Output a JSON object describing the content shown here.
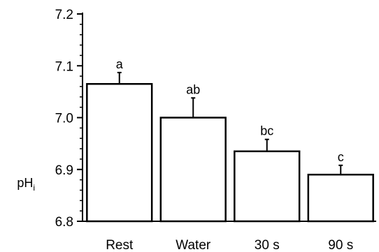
{
  "chart_data": {
    "type": "bar",
    "categories": [
      "Rest",
      "Water",
      "30 s",
      "90 s"
    ],
    "values": [
      7.065,
      7.0,
      6.935,
      6.89
    ],
    "errors": [
      0.022,
      0.038,
      0.023,
      0.018
    ],
    "significance_labels": [
      "a",
      "ab",
      "bc",
      "c"
    ],
    "ylabel": "pH",
    "ylabel_subscript": "i",
    "xlabel": "",
    "ylim": [
      6.8,
      7.2
    ],
    "yticks": [
      "6.8",
      "6.9",
      "7.0",
      "7.1",
      "7.2"
    ],
    "minor_ticks_per_major": 4,
    "error_bars": "upper",
    "grid": false,
    "legend": "none",
    "colors": {
      "bar_fill": "#ffffff",
      "bar_stroke": "#000000",
      "axis": "#000000"
    }
  }
}
